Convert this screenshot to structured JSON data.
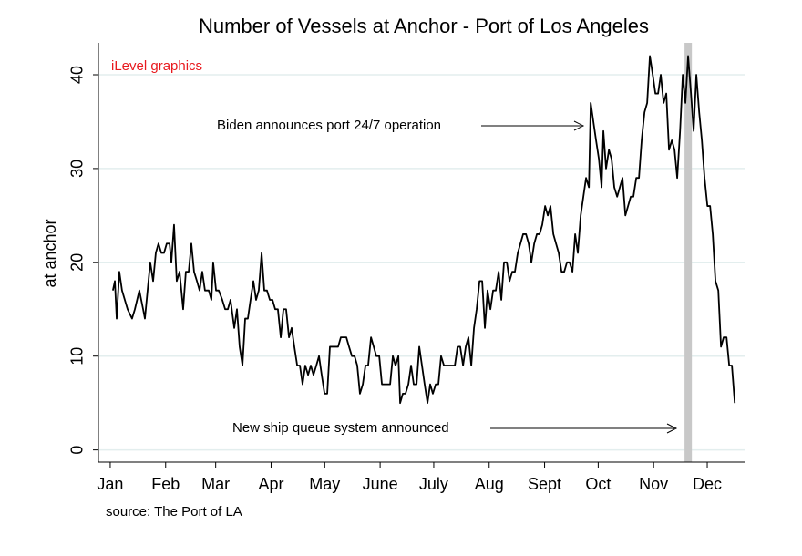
{
  "chart_data": {
    "type": "line",
    "title": "Number of Vessels at Anchor - Port of Los Angeles",
    "ylabel": "at anchor",
    "watermark": "iLevel graphics",
    "source": "source:  The Port of LA",
    "annotations": [
      "Biden announces port 24/7 operation",
      "New ship queue system announced"
    ],
    "highlight_x": [
      321.3,
      325.4
    ],
    "highlight_color": "#c8c8c8",
    "grid": true,
    "xlim": [
      -6.6,
      355.4
    ],
    "ylim": [
      -1.3,
      43.4
    ],
    "yticks": [
      0,
      10,
      20,
      30,
      40
    ],
    "xticks": [
      {
        "value": 0,
        "label": "Jan"
      },
      {
        "value": 31,
        "label": "Feb"
      },
      {
        "value": 59,
        "label": "Mar"
      },
      {
        "value": 90,
        "label": "Apr"
      },
      {
        "value": 120,
        "label": "May"
      },
      {
        "value": 151,
        "label": "June"
      },
      {
        "value": 181,
        "label": "July"
      },
      {
        "value": 212,
        "label": "Aug"
      },
      {
        "value": 243,
        "label": "Sept"
      },
      {
        "value": 273,
        "label": "Oct"
      },
      {
        "value": 304,
        "label": "Nov"
      },
      {
        "value": 334,
        "label": "Dec"
      }
    ],
    "x": [
      1.5,
      2.6,
      3.6,
      5.1,
      6.6,
      9.7,
      12.2,
      13.8,
      16.3,
      18.4,
      19.4,
      20.9,
      22.4,
      24,
      25.5,
      27,
      28.6,
      30.1,
      31.6,
      33.2,
      34.2,
      35.7,
      37.2,
      38.8,
      40.8,
      42.3,
      43.9,
      45.4,
      46.9,
      48.5,
      50,
      51.5,
      53,
      55.1,
      56.6,
      57.6,
      59.2,
      60.7,
      62.7,
      64.3,
      65.8,
      67.3,
      69.4,
      70.9,
      72.4,
      74,
      75.5,
      77,
      78.5,
      80.1,
      81.6,
      83.1,
      84.7,
      86.2,
      87.7,
      89.3,
      90.8,
      92.3,
      93.8,
      95.4,
      96.9,
      98.4,
      100,
      101.5,
      103,
      104.6,
      106.1,
      107.6,
      109.1,
      110.7,
      112.2,
      113.7,
      115.3,
      116.8,
      118.3,
      119.9,
      121.4,
      122.9,
      124.4,
      126,
      127.5,
      129,
      130.6,
      132.1,
      133.6,
      135.2,
      136.7,
      138.2,
      139.7,
      141.3,
      142.8,
      144.3,
      145.9,
      147.4,
      148.9,
      150.5,
      152,
      153.5,
      155,
      156.6,
      158.1,
      159.6,
      161.2,
      162.2,
      163.7,
      165.2,
      166.8,
      168.3,
      169.8,
      171.4,
      172.9,
      174.4,
      175.9,
      177.5,
      179,
      180.5,
      182.1,
      183.6,
      185.1,
      186.7,
      188.2,
      189.7,
      191.3,
      192.8,
      194.3,
      195.8,
      197.4,
      198.9,
      200.4,
      202,
      203.5,
      205,
      206.6,
      208.1,
      209.6,
      211.1,
      212.7,
      214.2,
      215.7,
      217.3,
      218.8,
      220.3,
      221.9,
      223.4,
      224.9,
      226.4,
      228,
      229.5,
      231,
      232.6,
      234.1,
      235.6,
      237.2,
      238.7,
      240.2,
      241.7,
      243.3,
      244.8,
      246.3,
      247.9,
      249.4,
      250.9,
      252.5,
      254,
      255.5,
      257,
      258.6,
      260.1,
      261.6,
      263.2,
      264.7,
      266.2,
      267.8,
      268.8,
      270.3,
      271.8,
      273.4,
      274.9,
      275.9,
      277.4,
      279,
      280.5,
      282,
      283.6,
      285.1,
      286.6,
      288.2,
      289.7,
      291.2,
      292.7,
      294.3,
      295.8,
      297.3,
      298.9,
      300.4,
      301.9,
      303.5,
      305,
      306.5,
      308,
      309.6,
      311.1,
      312.6,
      314.2,
      315.7,
      317.2,
      318.8,
      320.3,
      321.8,
      323.3,
      324.9,
      326.4,
      327.9,
      329.5,
      331,
      332.5,
      334.1,
      335.6,
      337.1,
      338.6,
      340.2,
      341.7,
      343.2,
      344.8,
      346.3,
      347.8,
      349.4
    ],
    "series": [
      {
        "name": "at anchor",
        "color": "#000000",
        "values": [
          17,
          18,
          14,
          19,
          17,
          15,
          14,
          15,
          17,
          15,
          14,
          17,
          20,
          18,
          21,
          22,
          21,
          21,
          22,
          22,
          20,
          24,
          18,
          19,
          15,
          19,
          19,
          22,
          19,
          18,
          17,
          19,
          17,
          17,
          16,
          20,
          17,
          17,
          16,
          15,
          15,
          16,
          13,
          15,
          11,
          9,
          14,
          14,
          16,
          18,
          16,
          17,
          21,
          17,
          17,
          16,
          16,
          15,
          15,
          12,
          15,
          15,
          12,
          13,
          11,
          9,
          9,
          7,
          9,
          8,
          9,
          8,
          9,
          10,
          8,
          6,
          6,
          11,
          11,
          11,
          11,
          12,
          12,
          12,
          11,
          10,
          10,
          9,
          6,
          7,
          9,
          9,
          12,
          11,
          10,
          10,
          7,
          7,
          7,
          7,
          10,
          9,
          10,
          5,
          6,
          6,
          7,
          9,
          7,
          7,
          11,
          9,
          7,
          5,
          7,
          6,
          7,
          7,
          10,
          9,
          9,
          9,
          9,
          9,
          11,
          11,
          9,
          11,
          12,
          9,
          13,
          15,
          18,
          18,
          13,
          17,
          15,
          17,
          17,
          19,
          16,
          20,
          20,
          18,
          19,
          19,
          21,
          22,
          23,
          23,
          22,
          20,
          22,
          23,
          23,
          24,
          26,
          25,
          26,
          23,
          22,
          21,
          19,
          19,
          20,
          20,
          19,
          23,
          21,
          25,
          27,
          29,
          28,
          37,
          35,
          33,
          31,
          28,
          34,
          30,
          32,
          31,
          28,
          27,
          28,
          29,
          25,
          26,
          27,
          27,
          29,
          29,
          33,
          36,
          37,
          42,
          40,
          38,
          38,
          40,
          37,
          38,
          32,
          33,
          32,
          29,
          34,
          40,
          37,
          42,
          38,
          34,
          40,
          36,
          33,
          29,
          26,
          26,
          23,
          18,
          17,
          11,
          12,
          12,
          9,
          9,
          5
        ]
      }
    ]
  }
}
